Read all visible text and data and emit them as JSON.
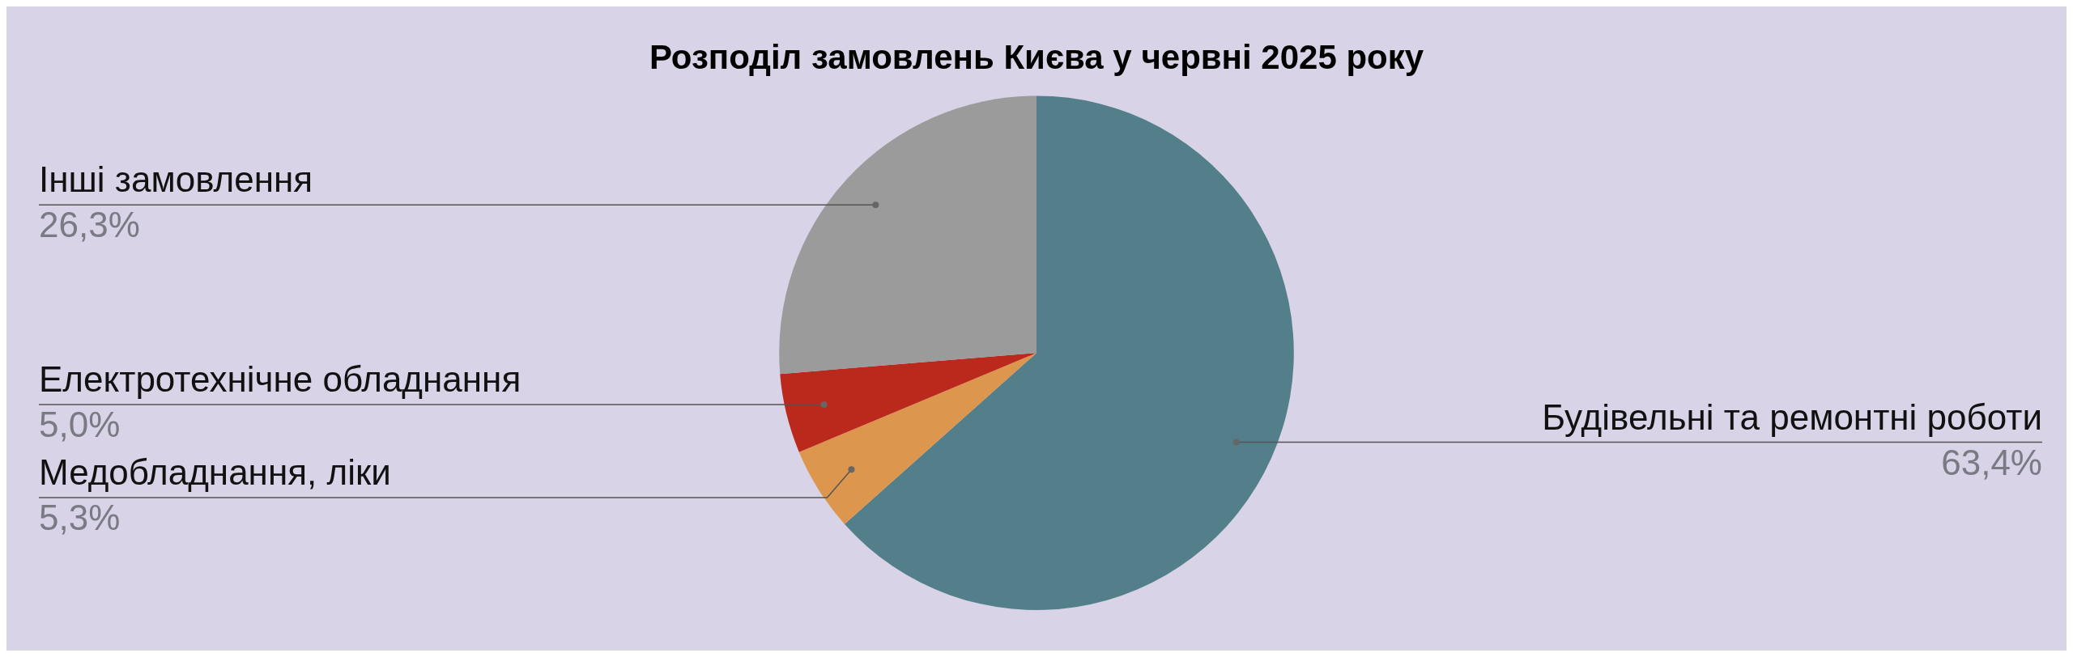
{
  "chart_data": {
    "type": "pie",
    "title": "Розподіл замовлень Києва у червні 2025 року",
    "categories": [
      "Будівельні та ремонтні роботи",
      "Медобладнання, ліки",
      "Електротехнічне обладнання",
      "Інші замовлення"
    ],
    "values": [
      63.4,
      5.3,
      5.0,
      26.3
    ],
    "value_labels": [
      "63,4%",
      "5,3%",
      "5,0%",
      "26,3%"
    ],
    "colors": [
      "#537f8b",
      "#dd964d",
      "#bb281c",
      "#9b9b9b"
    ],
    "legend": false
  }
}
